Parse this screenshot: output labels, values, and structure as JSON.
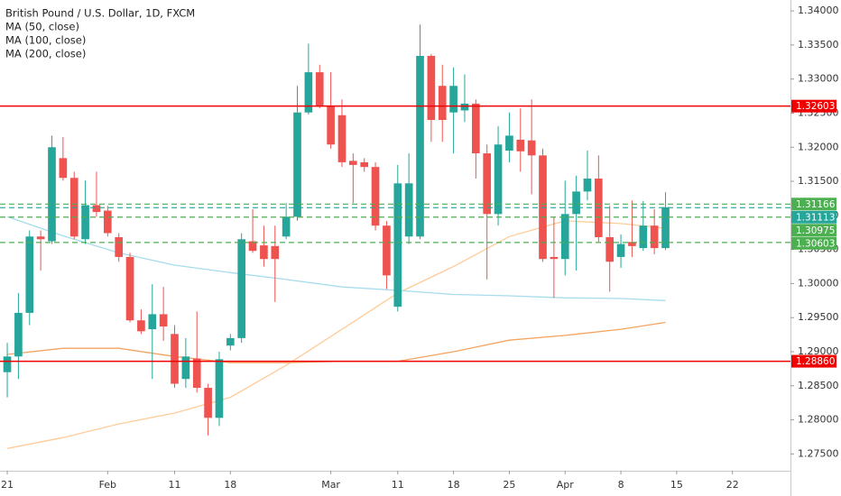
{
  "chart_data": {
    "type": "candlestick",
    "title": "British Pound / U.S. Dollar, 1D, FXCM",
    "up_color": "#26a69a",
    "down_color": "#ef5350",
    "x": [
      0,
      1,
      2,
      3,
      4,
      5,
      6,
      7,
      8,
      9,
      10,
      11,
      12,
      13,
      14,
      15,
      16,
      17,
      18,
      19,
      20,
      21,
      22,
      23,
      24,
      25,
      26,
      27,
      28,
      29,
      30,
      31,
      32,
      33,
      34,
      35,
      36,
      37,
      38,
      39,
      40,
      41,
      42,
      43,
      44,
      45,
      46,
      47,
      48,
      49,
      50,
      51,
      52,
      53,
      54,
      55,
      56,
      57,
      58,
      59
    ],
    "open": [
      1.287,
      1.2893,
      1.2957,
      1.3069,
      1.3062,
      1.3184,
      1.3155,
      1.3065,
      1.3115,
      1.3107,
      1.3068,
      1.3039,
      1.2946,
      1.2933,
      1.2955,
      1.2926,
      1.286,
      1.289,
      1.2847,
      1.2803,
      1.2909,
      1.292,
      1.3062,
      1.3056,
      1.3055,
      1.3069,
      1.3098,
      1.3251,
      1.331,
      1.326,
      1.3247,
      1.318,
      1.3178,
      1.3171,
      1.3085,
      1.2966,
      1.3069,
      1.3069,
      1.3334,
      1.329,
      1.3251,
      1.3254,
      1.3264,
      1.3191,
      1.3102,
      1.3195,
      1.3211,
      1.321,
      1.3188,
      1.3039,
      1.3036,
      1.3102,
      1.3135,
      1.3154,
      1.3068,
      1.3039,
      1.3061,
      1.3052,
      1.3085,
      1.3052
    ],
    "high": [
      1.2913,
      1.2986,
      1.3078,
      1.3078,
      1.3217,
      1.3215,
      1.3164,
      1.3151,
      1.3164,
      1.3114,
      1.3074,
      1.3045,
      1.2962,
      1.2999,
      1.2995,
      1.2939,
      1.292,
      1.2959,
      1.2853,
      1.29,
      1.2926,
      1.3074,
      1.3109,
      1.3085,
      1.3085,
      1.3118,
      1.329,
      1.3352,
      1.3321,
      1.331,
      1.327,
      1.3191,
      1.3184,
      1.3178,
      1.3092,
      1.3174,
      1.3191,
      1.338,
      1.3337,
      1.3321,
      1.3317,
      1.3307,
      1.327,
      1.3204,
      1.3231,
      1.3251,
      1.3257,
      1.327,
      1.3198,
      1.3098,
      1.3151,
      1.3158,
      1.3195,
      1.3188,
      1.3114,
      1.3072,
      1.3122,
      1.3121,
      1.3109,
      1.3134
    ],
    "low": [
      1.2833,
      1.286,
      1.2939,
      1.3019,
      1.3058,
      1.3151,
      1.3065,
      1.3058,
      1.3098,
      1.3069,
      1.3032,
      1.2943,
      1.2926,
      1.286,
      1.2916,
      1.2847,
      1.2847,
      1.284,
      1.2777,
      1.2791,
      1.2902,
      1.2913,
      1.3045,
      1.3025,
      1.2973,
      1.3065,
      1.3092,
      1.3248,
      1.3257,
      1.3198,
      1.3171,
      1.3118,
      1.3164,
      1.3078,
      1.2992,
      1.2959,
      1.3058,
      1.3065,
      1.3208,
      1.3208,
      1.3191,
      1.3237,
      1.3154,
      1.3006,
      1.3085,
      1.3178,
      1.3164,
      1.3131,
      1.3032,
      1.2979,
      1.3012,
      1.3019,
      1.3122,
      1.3061,
      1.2988,
      1.3023,
      1.3039,
      1.3048,
      1.3043,
      1.3049
    ],
    "close": [
      1.2893,
      1.2957,
      1.3069,
      1.3065,
      1.32,
      1.3155,
      1.3069,
      1.3115,
      1.3105,
      1.3074,
      1.3039,
      1.2946,
      1.293,
      1.2955,
      1.2937,
      1.2853,
      1.2893,
      1.2847,
      1.2803,
      1.2889,
      1.292,
      1.3065,
      1.3048,
      1.3036,
      1.3036,
      1.3098,
      1.3251,
      1.331,
      1.326,
      1.3204,
      1.3178,
      1.3174,
      1.3171,
      1.3085,
      1.3012,
      1.3147,
      1.3147,
      1.3334,
      1.324,
      1.324,
      1.329,
      1.3264,
      1.3191,
      1.3102,
      1.3204,
      1.3217,
      1.3194,
      1.3188,
      1.3036,
      1.3036,
      1.3102,
      1.3135,
      1.3154,
      1.3068,
      1.3032,
      1.3058,
      1.3055,
      1.3085,
      1.3052,
      1.3112
    ],
    "series": [
      {
        "name": "MA (50, close)",
        "color": "#ffcc99",
        "x": [
          0,
          5,
          10,
          15,
          20,
          25,
          30,
          35,
          40,
          45,
          50,
          55,
          59
        ],
        "values": [
          1.2758,
          1.2774,
          1.2794,
          1.281,
          1.2833,
          1.288,
          1.2933,
          1.2986,
          1.3025,
          1.3069,
          1.3092,
          1.3088,
          1.3081
        ]
      },
      {
        "name": "MA (100, close)",
        "color": "#f4a460",
        "x": [
          0,
          5,
          10,
          15,
          20,
          25,
          30,
          35,
          40,
          45,
          50,
          55,
          59
        ],
        "values": [
          1.2896,
          1.2905,
          1.2905,
          1.2893,
          1.2884,
          1.2884,
          1.2886,
          1.2886,
          1.29,
          1.2917,
          1.2924,
          1.2933,
          1.2943
        ]
      },
      {
        "name": "MA (200, close)",
        "color": "#a6dcec",
        "x": [
          0,
          5,
          10,
          15,
          20,
          25,
          30,
          35,
          40,
          45,
          50,
          55,
          59
        ],
        "values": [
          1.3098,
          1.307,
          1.3045,
          1.3027,
          1.3016,
          1.3006,
          1.2995,
          1.299,
          1.2984,
          1.2982,
          1.2979,
          1.2978,
          1.2975
        ]
      }
    ],
    "levels": [
      {
        "value": 1.32603,
        "color": "#f00000",
        "style": "solid"
      },
      {
        "value": {
          "value": 1.2886,
          "label": "1.28860"
        },
        "color": "#f00000",
        "style": "solid"
      },
      {
        "value": 1.31166,
        "color": "#4caf50",
        "style": "dashed"
      },
      {
        "value": 1.31113,
        "color": "#26a69a",
        "style": "dashed"
      },
      {
        "value": 1.30975,
        "color": "#4caf50",
        "style": "dashed"
      },
      {
        "value": 1.30603,
        "color": "#4caf50",
        "style": "dashed"
      }
    ],
    "xlim": [
      -0.65,
      70.2
    ],
    "ylim": [
      1.2728,
      1.3416
    ],
    "xticks": [
      {
        "value": 0,
        "label": "21"
      },
      {
        "value": 9,
        "label": "Feb"
      },
      {
        "value": 15,
        "label": "11"
      },
      {
        "value": 20,
        "label": "18"
      },
      {
        "value": 29,
        "label": "Mar"
      },
      {
        "value": 35,
        "label": "11"
      },
      {
        "value": 40,
        "label": "18"
      },
      {
        "value": 45,
        "label": "25"
      },
      {
        "value": 50,
        "label": "Apr"
      },
      {
        "value": 55,
        "label": "8"
      },
      {
        "value": 60,
        "label": "15"
      },
      {
        "value": 65,
        "label": "22"
      }
    ],
    "yticks": [
      {
        "value": 1.34,
        "label": "1.34000"
      },
      {
        "value": 1.335,
        "label": "1.33500"
      },
      {
        "value": 1.33,
        "label": "1.33000"
      },
      {
        "value": 1.325,
        "label": "1.32500"
      },
      {
        "value": 1.32,
        "label": "1.32000"
      },
      {
        "value": 1.315,
        "label": "1.31500"
      },
      {
        "value": 1.31,
        "label": "1.31000"
      },
      {
        "value": 1.305,
        "label": "1.30500"
      },
      {
        "value": 1.3,
        "label": "1.30000"
      },
      {
        "value": 1.295,
        "label": "1.29500"
      },
      {
        "value": 1.29,
        "label": "1.29000"
      },
      {
        "value": 1.285,
        "label": "1.28500"
      },
      {
        "value": 1.28,
        "label": "1.28000"
      },
      {
        "value": 1.275,
        "label": "1.27500"
      }
    ]
  }
}
